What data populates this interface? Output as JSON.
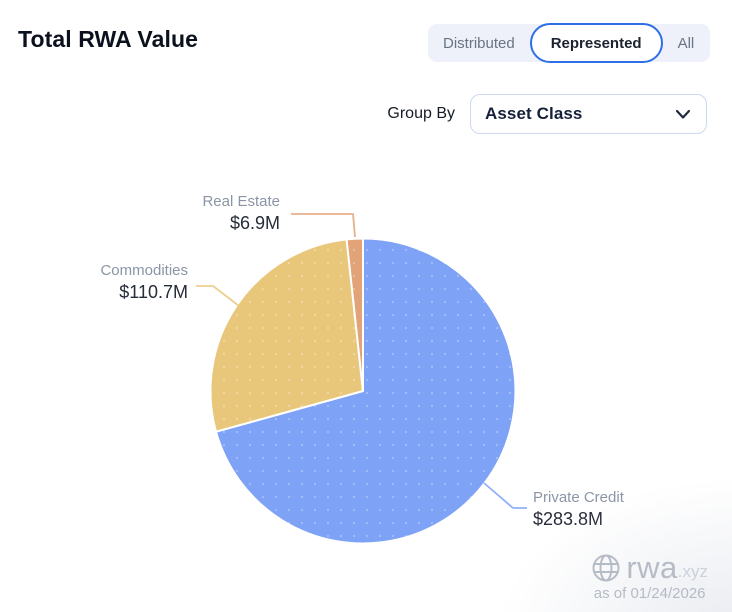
{
  "header": {
    "title": "Total RWA Value"
  },
  "view_toggle": {
    "options": [
      {
        "label": "Distributed",
        "selected": false
      },
      {
        "label": "Represented",
        "selected": true
      },
      {
        "label": "All",
        "selected": false
      }
    ]
  },
  "group_by": {
    "label": "Group By",
    "selected_option": "Asset Class"
  },
  "chart_data": {
    "type": "pie",
    "title": "Total RWA Value",
    "direction": "clockwise",
    "start_angle_deg": 0,
    "slices": [
      {
        "label": "Private Credit",
        "value": 283.8,
        "value_label": "$283.8M",
        "color": "#7ea2f6"
      },
      {
        "label": "Commodities",
        "value": 110.7,
        "value_label": "$110.7M",
        "color": "#e9c77a"
      },
      {
        "label": "Real Estate",
        "value": 6.9,
        "value_label": "$6.9M",
        "color": "#e1a377"
      }
    ]
  },
  "watermark": {
    "brand": "rwa",
    "brand_suffix": ".xyz",
    "as_of": "as of 01/24/2026"
  }
}
